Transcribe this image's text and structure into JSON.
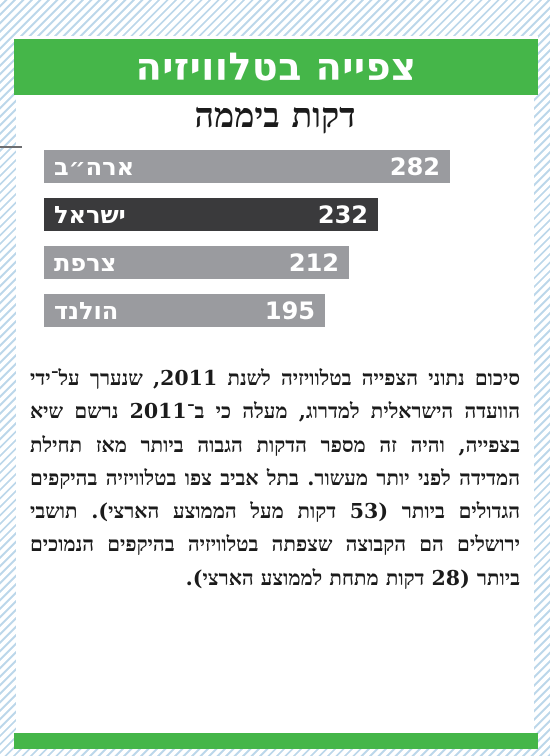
{
  "header": {
    "title": "צפייה בטלוויזיה"
  },
  "colors": {
    "accent_green": "#45b649",
    "bar_gray": "#9a9b9f",
    "bar_dark": "#3a3a3c",
    "stripe_blue": "#bcd7ea"
  },
  "chart_data": {
    "type": "bar",
    "orientation": "horizontal",
    "title": "דקות ביממה",
    "categories": [
      "ארה״ב",
      "ישראל",
      "צרפת",
      "הולנד"
    ],
    "values": [
      282,
      232,
      212,
      195
    ],
    "highlight": "ישראל",
    "xlim": [
      0,
      300
    ]
  },
  "body": {
    "text": "סיכום נתוני הצפייה בטלוויזיה לשנת 2011, שנערך על־ידי הוועדה הישראלית למדרוג, מעלה כי ב־2011 נרשם שיא בצפייה, והיה זה מספר הדקות הגבוה ביותר מאז תחילת המדידה לפני יותר מעשור. בתל אביב צפו בטלוויזיה בהיקפים הגדולים ביותר (53 דקות מעל הממוצע הארצי). תושבי ירושלים הם הקבוצה שצפתה בטלוויזיה בהיקפים הנמוכים ביותר (28 דקות מתחת לממוצע הארצי)."
  }
}
